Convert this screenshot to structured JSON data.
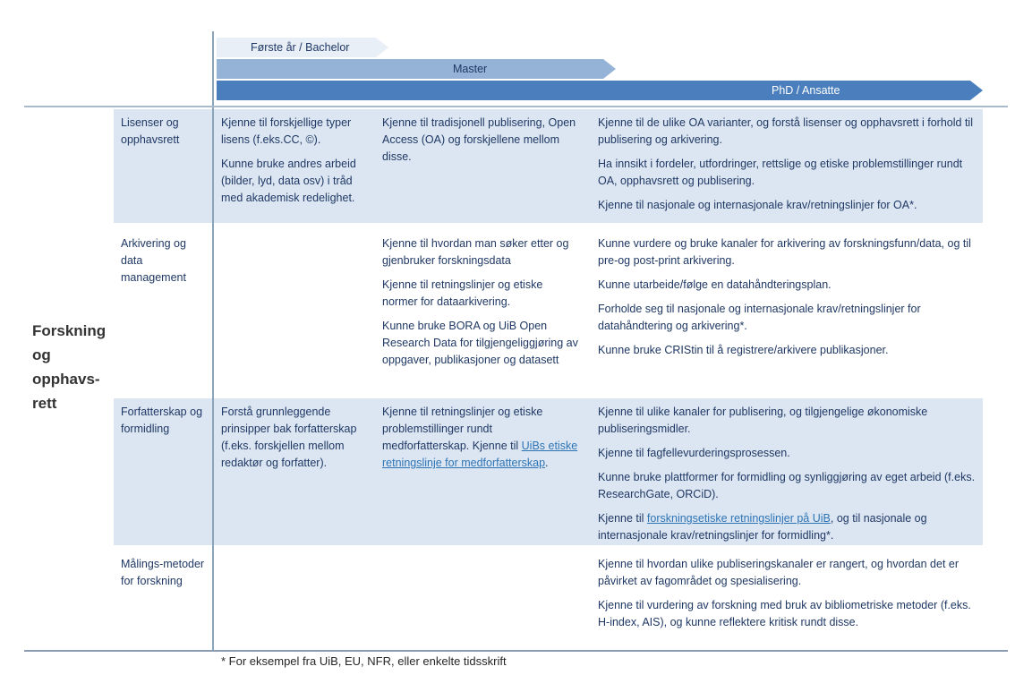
{
  "header": {
    "levels": [
      {
        "label": "Første år / Bachelor"
      },
      {
        "label": "Master"
      },
      {
        "label": "PhD / Ansatte"
      }
    ]
  },
  "sidebar": {
    "title_lines": [
      "Forskning",
      "og",
      "opphavs-",
      "rett"
    ]
  },
  "table": {
    "rows": [
      {
        "label": "Lisenser og opphavsrett",
        "bachelor": [
          "Kjenne til forskjellige typer lisens (f.eks.CC, ©).",
          "Kunne bruke andres arbeid (bilder, lyd, data osv) i tråd med akademisk redelighet."
        ],
        "master": [
          "Kjenne til tradisjonell publisering, Open Access (OA) og forskjellene mellom disse."
        ],
        "phd": [
          "Kjenne til de ulike OA varianter, og forstå lisenser og opphavsrett i forhold til publisering og arkivering.",
          "Ha innsikt i fordeler, utfordringer, rettslige og etiske problemstillinger rundt OA, opphavsrett og publisering.",
          "Kjenne til nasjonale og internasjonale krav/retningslinjer for OA*."
        ]
      },
      {
        "label": "Arkivering og data management",
        "master": [
          "Kjenne til hvordan man søker etter og gjenbruker forskningsdata",
          "Kjenne til retningslinjer og etiske normer for dataarkivering.",
          "Kunne bruke BORA og UiB Open Research Data for tilgjengeliggjøring av oppgaver, publikasjoner og datasett"
        ],
        "phd": [
          "Kunne vurdere og bruke kanaler for arkivering av forskningsfunn/data, og til pre-og post-print arkivering.",
          "Kunne utarbeide/følge en datahåndteringsplan.",
          "Forholde seg til nasjonale og internasjonale krav/retningslinjer for datahåndtering og arkivering*.",
          "Kunne bruke CRIStin til å registrere/arkivere publikasjoner."
        ]
      },
      {
        "label": "Forfatterskap og formidling",
        "bachelor": [
          "Forstå grunnleggende prinsipper bak forfatterskap (f.eks. forskjellen mellom redaktør og forfatter)."
        ],
        "master_rich": {
          "prefix": "Kjenne til retningslinjer og etiske problemstillinger rundt medforfatterskap. Kjenne til ",
          "link": "UiBs etiske retningslinje for medforfatterskap",
          "suffix": "."
        },
        "phd": [
          "Kjenne til ulike kanaler for publisering, og tilgjengelige økonomiske publiseringsmidler.",
          "Kjenne til fagfellevurderingsprosessen.",
          "Kunne bruke plattformer for formidling og synliggjøring av eget arbeid (f.eks. ResearchGate, ORCiD)."
        ],
        "phd_rich": {
          "prefix": "Kjenne til ",
          "link": "forskningsetiske retningslinjer på UiB",
          "suffix": ", og til nasjonale og internasjonale krav/retningslinjer for formidling*."
        }
      },
      {
        "label": "Målings-metoder for forskning",
        "phd": [
          "Kjenne til hvordan ulike publiseringskanaler er rangert, og hvordan det er påvirket av fagområdet og spesialisering.",
          "Kjenne til vurdering av forskning med bruk av bibliometriske metoder (f.eks. H-index, AIS), og kunne reflektere kritisk rundt disse."
        ]
      }
    ]
  },
  "footnote": "* For eksempel fra UiB, EU, NFR, eller enkelte tidsskrift",
  "colors": {
    "row_highlight": "#dce6f2",
    "arrow_bachelor": "#e9eff7",
    "arrow_master": "#95b3d7",
    "arrow_phd": "#4a7ebc",
    "body_text": "#1f3864",
    "link": "#2e74b5",
    "grid_line": "#8ba4ba"
  }
}
